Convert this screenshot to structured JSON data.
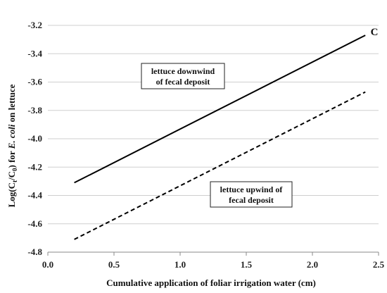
{
  "chart_data": {
    "type": "line",
    "panel_label": "C",
    "xlabel": "Cumulative application of foliar irrigation water (cm)",
    "ylabel_parts": [
      "Log(C",
      "t",
      "/C",
      "0",
      ") for ",
      "E. coli",
      " on lettuce"
    ],
    "xlim": [
      0.0,
      2.5
    ],
    "ylim": [
      -4.8,
      -3.2
    ],
    "xticks": [
      0.0,
      0.5,
      1.0,
      1.5,
      2.0,
      2.5
    ],
    "xtick_labels": [
      "0.0",
      "0.5",
      "1.0",
      "1.5",
      "2.0",
      "2.5"
    ],
    "yticks": [
      -4.8,
      -4.6,
      -4.4,
      -4.2,
      -4.0,
      -3.8,
      -3.6,
      -3.4,
      -3.2
    ],
    "ytick_labels": [
      "-4.8",
      "-4.6",
      "-4.4",
      "-4.2",
      "-4.0",
      "-3.8",
      "-3.6",
      "-3.4",
      "-3.2"
    ],
    "grid": "horizontal",
    "series": [
      {
        "style": "solid",
        "x": [
          0.2,
          2.4
        ],
        "y": [
          -4.31,
          -3.27
        ]
      },
      {
        "style": "dashed",
        "x": [
          0.2,
          2.4
        ],
        "y": [
          -4.71,
          -3.67
        ]
      }
    ],
    "annotations": [
      {
        "lines": [
          "lettuce downwind",
          "of fecal deposit"
        ]
      },
      {
        "lines": [
          "lettuce upwind of",
          "fecal deposit"
        ]
      }
    ],
    "colors": {
      "line": "#000000",
      "grid": "#cfcfcf"
    }
  }
}
